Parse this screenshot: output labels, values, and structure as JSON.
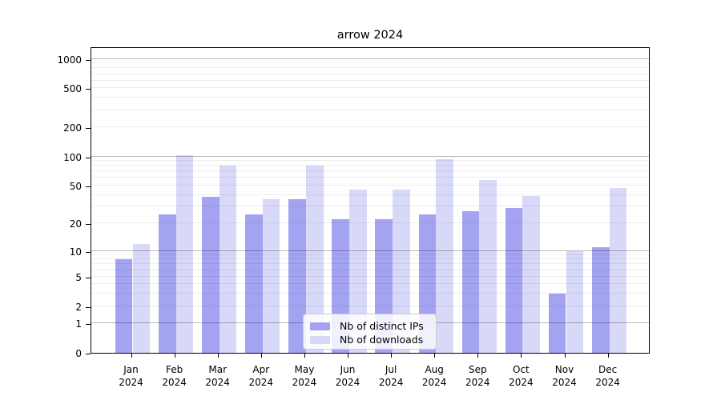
{
  "title": "arrow 2024",
  "chart_data": {
    "type": "bar",
    "title": "arrow 2024",
    "categories": [
      "Jan",
      "Feb",
      "Mar",
      "Apr",
      "May",
      "Jun",
      "Jul",
      "Aug",
      "Sep",
      "Oct",
      "Nov",
      "Dec"
    ],
    "category_year": "2024",
    "series": [
      {
        "name": "Nb of distinct IPs",
        "color": "#a3a3f2",
        "values": [
          8,
          25,
          38,
          25,
          36,
          22,
          22,
          25,
          27,
          29,
          3,
          11
        ]
      },
      {
        "name": "Nb of downloads",
        "color": "#d8d8f8",
        "values": [
          12,
          104,
          80,
          36,
          80,
          45,
          45,
          93,
          57,
          39,
          10,
          47
        ]
      }
    ],
    "yticks": [
      0,
      1,
      2,
      5,
      10,
      20,
      50,
      100,
      200,
      500,
      1000
    ],
    "ylim": [
      0,
      1340
    ],
    "scale": "log10(1+y)",
    "grid": "major-and-minor",
    "legend_position": "lower-center",
    "colors": {
      "major_grid": "rgba(0,0,0,0.28)",
      "minor_grid": "rgba(0,0,0,0.07)",
      "axis": "#000000",
      "background": "#ffffff"
    }
  }
}
